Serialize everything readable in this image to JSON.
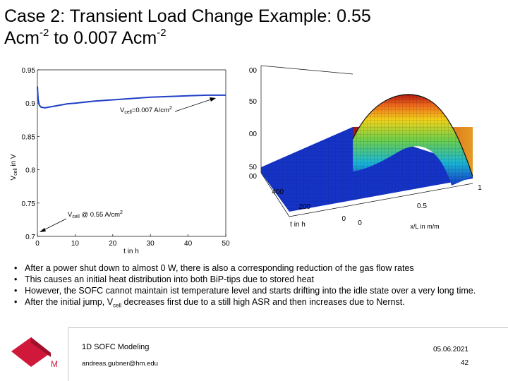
{
  "slide": {
    "title_line1": "Case 2: Transient Load Change Example: 0.55",
    "title_line2_a": "Acm",
    "title_line2_sup1": "-2",
    "title_line2_b": " to 0.007 Acm",
    "title_line2_sup2": "-2"
  },
  "bullets": [
    {
      "text": "After a power shut down to almost 0 W, there is also a corresponding reduction of the gas flow rates"
    },
    {
      "text": "This causes an initial heat distribution into both BiP-tips due to stored heat"
    },
    {
      "text": "However, the SOFC cannot maintain ist temperature level and starts drifting into the idle state over a very long time."
    },
    {
      "text_a": "After the initial jump, V",
      "text_sub": "cell",
      "text_b": " decreases first due to a still high ASR and then increases due to Nernst."
    }
  ],
  "footer": {
    "title": "1D SOFC Modeling",
    "email": "andreas.gubner@hm.edu",
    "date": "05.06.2021",
    "page": "42",
    "logo_letter": "M"
  },
  "colors": {
    "line": "#1f3fc4",
    "logo": "#d0193a",
    "arrow": "#000000"
  },
  "chart_data": [
    {
      "type": "line",
      "xlabel": "t in h",
      "ylabel_a": "V",
      "ylabel_sub": "cell",
      "ylabel_b": " in V",
      "xlim": [
        0,
        50
      ],
      "ylim": [
        0.7,
        0.95
      ],
      "xticks": [
        "0",
        "10",
        "20",
        "30",
        "40",
        "50"
      ],
      "yticks": [
        "0.7",
        "0.75",
        "0.8",
        "0.85",
        "0.9",
        "0.95"
      ],
      "grid": false,
      "x": [
        0,
        0.2,
        0.5,
        1,
        2,
        3,
        5,
        8,
        10,
        15,
        20,
        25,
        30,
        35,
        40,
        45,
        50
      ],
      "y": [
        0.925,
        0.905,
        0.897,
        0.894,
        0.893,
        0.894,
        0.896,
        0.899,
        0.9,
        0.903,
        0.905,
        0.907,
        0.909,
        0.91,
        0.911,
        0.912,
        0.912
      ],
      "annotations": [
        {
          "text_a": "V",
          "text_sub": "cell",
          "text_b": "=0.007 A/cm",
          "text_sup": "2"
        },
        {
          "text_a": "V",
          "text_sub": "cell",
          "text_b": " @ 0.55 A/cm",
          "text_sup": "2"
        }
      ]
    },
    {
      "type": "surface",
      "xlabel": "x/L in m/m",
      "ylabel": "t in h",
      "xticks": [
        "0",
        "0.5",
        "1"
      ],
      "yticks": [
        "0",
        "200",
        "400"
      ],
      "zticks": [
        "00",
        "50",
        "00",
        "50",
        "00"
      ]
    }
  ]
}
